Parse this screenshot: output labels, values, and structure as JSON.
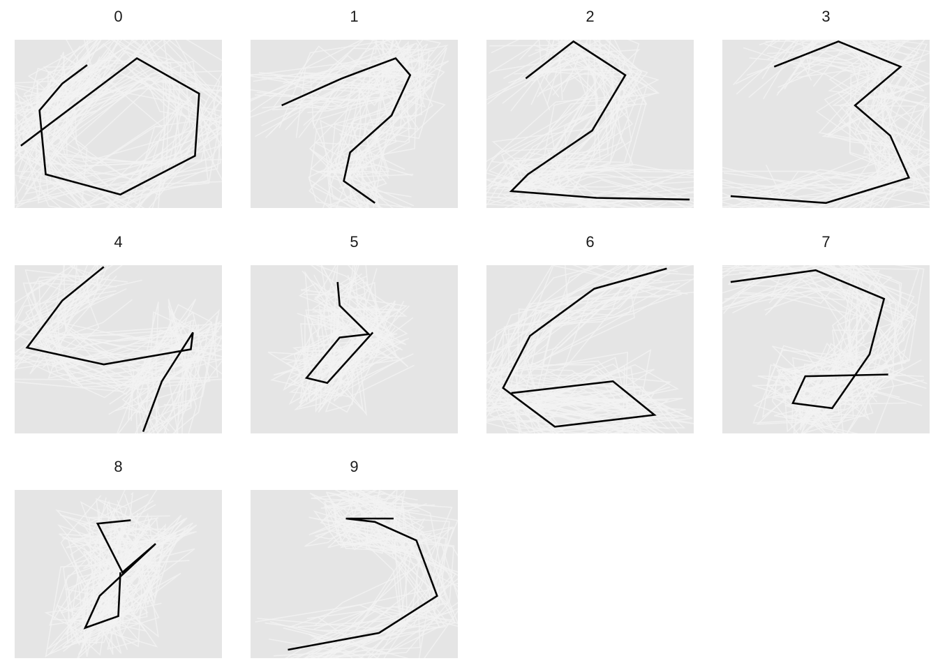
{
  "chart_data": {
    "type": "line",
    "title": "",
    "xlabel": "",
    "ylabel": "",
    "xlim": [
      0,
      100
    ],
    "ylim": [
      0,
      100
    ],
    "background_color": "#e5e5e5",
    "highlight_color": "#000000",
    "grid": false,
    "legend": "none",
    "facets": [
      {
        "label": "0",
        "highlight": {
          "x": [
            35,
            23,
            12,
            15,
            51,
            87,
            89,
            59,
            3
          ],
          "y": [
            85,
            74,
            58,
            20,
            8,
            31,
            68,
            89,
            37
          ]
        }
      },
      {
        "label": "1",
        "highlight": {
          "x": [
            15,
            44,
            70,
            77,
            68,
            48,
            45,
            60
          ],
          "y": [
            61,
            77,
            89,
            79,
            55,
            33,
            16,
            3
          ]
        }
      },
      {
        "label": "2",
        "highlight": {
          "x": [
            19,
            42,
            67,
            51,
            20,
            12,
            53,
            98
          ],
          "y": [
            77,
            99,
            79,
            46,
            20,
            10,
            6,
            5
          ]
        }
      },
      {
        "label": "3",
        "highlight": {
          "x": [
            25,
            56,
            86,
            64,
            81,
            90,
            50,
            4
          ],
          "y": [
            84,
            99,
            84,
            61,
            43,
            18,
            3,
            7
          ]
        }
      },
      {
        "label": "4",
        "highlight": {
          "x": [
            43,
            23,
            6,
            43,
            85,
            86,
            71,
            62
          ],
          "y": [
            99,
            79,
            51,
            41,
            50,
            60,
            31,
            1
          ]
        }
      },
      {
        "label": "5",
        "highlight": {
          "x": [
            42,
            43,
            57,
            43,
            27,
            37,
            59
          ],
          "y": [
            90,
            76,
            59,
            57,
            33,
            30,
            60
          ]
        }
      },
      {
        "label": "6",
        "highlight": {
          "x": [
            87,
            52,
            21,
            8,
            33,
            81,
            61,
            12
          ],
          "y": [
            98,
            86,
            58,
            27,
            4,
            11,
            31,
            24
          ]
        }
      },
      {
        "label": "7",
        "highlight": {
          "x": [
            4,
            45,
            78,
            71,
            53,
            34,
            40,
            80
          ],
          "y": [
            90,
            97,
            80,
            47,
            15,
            18,
            34,
            35
          ]
        }
      },
      {
        "label": "8",
        "highlight": {
          "x": [
            56,
            40,
            52,
            68,
            41,
            34,
            50,
            51
          ],
          "y": [
            82,
            80,
            51,
            68,
            37,
            18,
            25,
            51
          ]
        }
      },
      {
        "label": "9",
        "highlight": {
          "x": [
            69,
            55,
            46,
            60,
            80,
            90,
            62,
            18
          ],
          "y": [
            83,
            83,
            83,
            81,
            70,
            37,
            15,
            5
          ]
        }
      }
    ]
  }
}
